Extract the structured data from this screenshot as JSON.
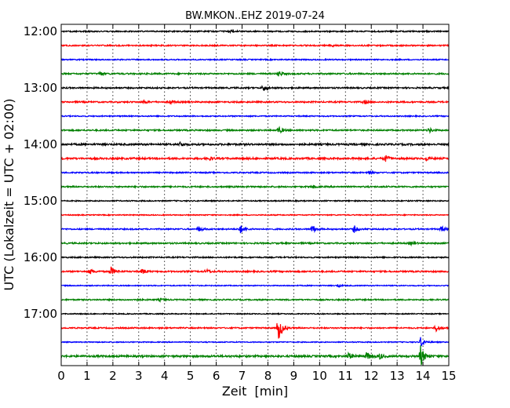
{
  "chart_data": {
    "type": "line",
    "title": "BW.MKON..EHZ 2019-07-24",
    "xlabel": "Zeit  [min]",
    "ylabel": "UTC (Lokalzeit = UTC + 02:00)",
    "xlim": [
      0,
      15
    ],
    "x_ticks": [
      0,
      1,
      2,
      3,
      4,
      5,
      6,
      7,
      8,
      9,
      10,
      11,
      12,
      13,
      14,
      15
    ],
    "y_ticks": [
      "12:00",
      "13:00",
      "14:00",
      "15:00",
      "16:00",
      "17:00"
    ],
    "grid": true,
    "colors": [
      "#000000",
      "#ff0000",
      "#0000ff",
      "#008000"
    ],
    "traces": [
      {
        "start": "12:00",
        "color": "#000000",
        "noise": 0.8,
        "events": [
          {
            "t": 6.5,
            "amp": 2
          }
        ]
      },
      {
        "start": "12:15",
        "color": "#ff0000",
        "noise": 0.8,
        "events": [
          {
            "t": 10.4,
            "amp": 2
          }
        ]
      },
      {
        "start": "12:30",
        "color": "#0000ff",
        "noise": 0.7,
        "events": []
      },
      {
        "start": "12:45",
        "color": "#008000",
        "noise": 0.9,
        "events": [
          {
            "t": 1.5,
            "amp": 2.5
          },
          {
            "t": 8.4,
            "amp": 4
          }
        ]
      },
      {
        "start": "13:00",
        "color": "#000000",
        "noise": 0.9,
        "events": [
          {
            "t": 7.8,
            "amp": 5
          }
        ]
      },
      {
        "start": "13:15",
        "color": "#ff0000",
        "noise": 0.9,
        "events": [
          {
            "t": 3.2,
            "amp": 2
          },
          {
            "t": 4.2,
            "amp": 3
          },
          {
            "t": 11.7,
            "amp": 3
          }
        ]
      },
      {
        "start": "13:30",
        "color": "#0000ff",
        "noise": 0.7,
        "events": []
      },
      {
        "start": "13:45",
        "color": "#008000",
        "noise": 0.9,
        "events": [
          {
            "t": 8.4,
            "amp": 5
          },
          {
            "t": 14.2,
            "amp": 4
          }
        ]
      },
      {
        "start": "14:00",
        "color": "#000000",
        "noise": 1.1,
        "events": [
          {
            "t": 4.6,
            "amp": 3
          }
        ]
      },
      {
        "start": "14:15",
        "color": "#ff0000",
        "noise": 1.1,
        "events": [
          {
            "t": 5.7,
            "amp": 3
          },
          {
            "t": 12.5,
            "amp": 6
          },
          {
            "t": 14.1,
            "amp": 3
          }
        ]
      },
      {
        "start": "14:30",
        "color": "#0000ff",
        "noise": 0.8,
        "events": [
          {
            "t": 11.9,
            "amp": 2
          }
        ]
      },
      {
        "start": "14:45",
        "color": "#008000",
        "noise": 0.9,
        "events": [
          {
            "t": 9.7,
            "amp": 2
          }
        ]
      },
      {
        "start": "15:00",
        "color": "#000000",
        "noise": 0.7,
        "events": []
      },
      {
        "start": "15:15",
        "color": "#ff0000",
        "noise": 0.6,
        "events": []
      },
      {
        "start": "15:30",
        "color": "#0000ff",
        "noise": 0.8,
        "events": [
          {
            "t": 5.3,
            "amp": 4
          },
          {
            "t": 6.9,
            "amp": 7
          },
          {
            "t": 9.7,
            "amp": 6
          },
          {
            "t": 11.3,
            "amp": 6
          },
          {
            "t": 14.7,
            "amp": 4
          }
        ]
      },
      {
        "start": "15:45",
        "color": "#008000",
        "noise": 0.9,
        "events": [
          {
            "t": 13.5,
            "amp": 2
          }
        ]
      },
      {
        "start": "16:00",
        "color": "#000000",
        "noise": 0.8,
        "events": []
      },
      {
        "start": "16:15",
        "color": "#ff0000",
        "noise": 0.9,
        "events": [
          {
            "t": 1.1,
            "amp": 4
          },
          {
            "t": 1.9,
            "amp": 7
          },
          {
            "t": 3.1,
            "amp": 5
          },
          {
            "t": 5.6,
            "amp": 3
          }
        ]
      },
      {
        "start": "16:30",
        "color": "#0000ff",
        "noise": 0.6,
        "events": [
          {
            "t": 10.7,
            "amp": 2
          }
        ]
      },
      {
        "start": "16:45",
        "color": "#008000",
        "noise": 0.8,
        "events": [
          {
            "t": 2.8,
            "amp": 2
          },
          {
            "t": 3.8,
            "amp": 2
          }
        ]
      },
      {
        "start": "17:00",
        "color": "#000000",
        "noise": 0.6,
        "events": []
      },
      {
        "start": "17:15",
        "color": "#ff0000",
        "noise": 0.8,
        "events": [
          {
            "t": 8.4,
            "amp": 18
          },
          {
            "t": 14.5,
            "amp": 5
          }
        ]
      },
      {
        "start": "17:30",
        "color": "#0000ff",
        "noise": 0.6,
        "events": [
          {
            "t": 13.9,
            "amp": 8
          }
        ]
      },
      {
        "start": "17:45",
        "color": "#008000",
        "noise": 1.2,
        "events": [
          {
            "t": 11.1,
            "amp": 5
          },
          {
            "t": 11.8,
            "amp": 6
          },
          {
            "t": 12.3,
            "amp": 4
          },
          {
            "t": 13.9,
            "amp": 14
          }
        ]
      }
    ]
  }
}
